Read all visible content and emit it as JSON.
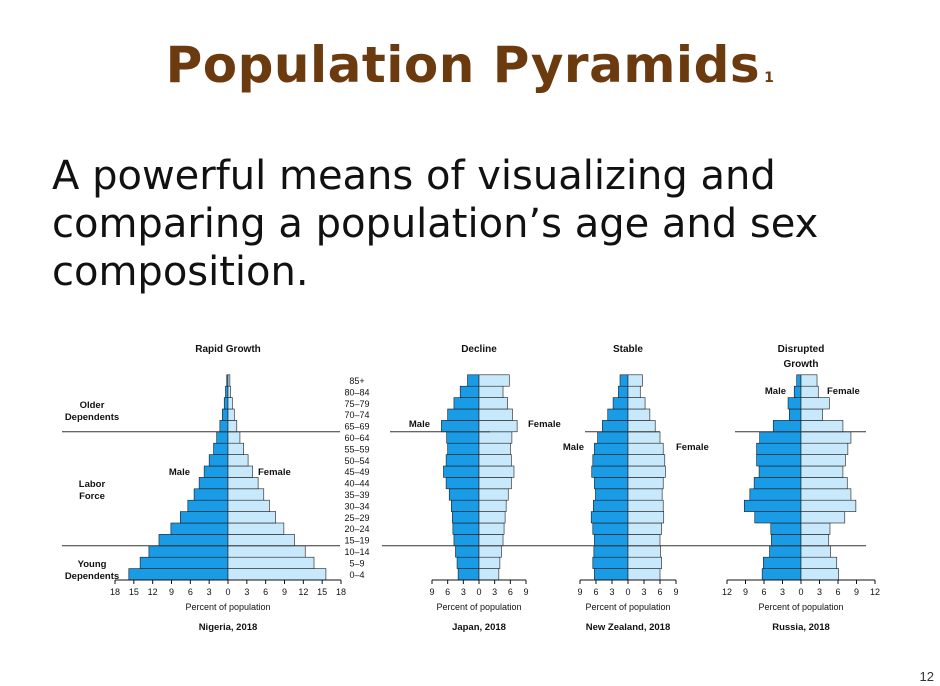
{
  "slide": {
    "title": "Population Pyramids",
    "title_superscript": "1",
    "body": "A powerful means of visualizing and comparing a population’s age and sex composition.",
    "page_number": "12"
  },
  "colors": {
    "male": "#1a9be6",
    "female": "#c8e8fb",
    "outline": "#1a1a1a",
    "title": "#6b3a0e"
  },
  "age_groups": [
    "0–4",
    "5–9",
    "10–14",
    "15–19",
    "20–24",
    "25–29",
    "30–34",
    "35–39",
    "40–44",
    "45–49",
    "50–54",
    "55–59",
    "60–64",
    "65–69",
    "70–74",
    "75–79",
    "80–84",
    "85+"
  ],
  "dependency_labels": {
    "older": "Older Dependents",
    "labor": "Labor Force",
    "young": "Young Dependents"
  },
  "chart_data": [
    {
      "type": "bar",
      "title": "Rapid Growth",
      "caption": "Nigeria, 2018",
      "xlabel": "Percent of population",
      "xticks": [
        18,
        15,
        12,
        9,
        6,
        3,
        0,
        3,
        6,
        9,
        12,
        15,
        18
      ],
      "xlim": [
        -18,
        18
      ],
      "legend": {
        "male": "Male",
        "female": "Female"
      },
      "series": [
        {
          "name": "Male",
          "values": [
            15.8,
            14.0,
            12.6,
            11.0,
            9.1,
            7.6,
            6.4,
            5.4,
            4.6,
            3.8,
            3.0,
            2.3,
            1.8,
            1.3,
            0.9,
            0.6,
            0.4,
            0.2
          ]
        },
        {
          "name": "Female",
          "values": [
            15.6,
            13.7,
            12.3,
            10.6,
            8.9,
            7.6,
            6.6,
            5.7,
            4.8,
            3.9,
            3.2,
            2.5,
            1.9,
            1.4,
            1.0,
            0.7,
            0.4,
            0.3
          ]
        }
      ]
    },
    {
      "type": "bar",
      "title": "Decline",
      "caption": "Japan, 2018",
      "xlabel": "Percent of population",
      "xticks": [
        9,
        6,
        3,
        0,
        3,
        6,
        9
      ],
      "xlim": [
        -9,
        9
      ],
      "legend": {
        "male": "Male",
        "female": "Female"
      },
      "series": [
        {
          "name": "Male",
          "values": [
            4.0,
            4.2,
            4.5,
            4.8,
            5.0,
            5.1,
            5.3,
            5.7,
            6.3,
            6.8,
            6.3,
            6.0,
            6.2,
            7.2,
            6.0,
            4.8,
            3.6,
            2.2
          ]
        },
        {
          "name": "Female",
          "values": [
            3.8,
            4.0,
            4.3,
            4.6,
            4.8,
            5.0,
            5.2,
            5.6,
            6.2,
            6.7,
            6.2,
            6.0,
            6.3,
            7.3,
            6.4,
            5.5,
            4.6,
            5.8
          ]
        }
      ]
    },
    {
      "type": "bar",
      "title": "Stable",
      "caption": "New Zealand, 2018",
      "xlabel": "Percent of population",
      "xticks": [
        9,
        6,
        3,
        0,
        3,
        6,
        9
      ],
      "xlim": [
        -9,
        9
      ],
      "legend": {
        "male": "Male",
        "female": "Female"
      },
      "series": [
        {
          "name": "Male",
          "values": [
            6.3,
            6.6,
            6.4,
            6.3,
            6.6,
            6.9,
            6.5,
            6.1,
            6.3,
            6.8,
            6.6,
            6.3,
            5.7,
            4.8,
            3.8,
            2.8,
            1.8,
            1.5
          ]
        },
        {
          "name": "Female",
          "values": [
            6.0,
            6.3,
            6.1,
            6.0,
            6.3,
            6.7,
            6.6,
            6.4,
            6.6,
            7.0,
            6.9,
            6.6,
            6.0,
            5.1,
            4.1,
            3.2,
            2.3,
            2.7
          ]
        }
      ]
    },
    {
      "type": "bar",
      "title": "Disrupted Growth",
      "caption": "Russia, 2018",
      "xlabel": "Percent of population",
      "xticks": [
        12,
        9,
        6,
        3,
        0,
        3,
        6,
        9,
        12
      ],
      "xlim": [
        -12,
        12
      ],
      "legend": {
        "male": "Male",
        "female": "Female"
      },
      "series": [
        {
          "name": "Male",
          "values": [
            6.3,
            6.1,
            5.1,
            4.8,
            4.9,
            7.5,
            9.2,
            8.3,
            7.6,
            6.8,
            7.2,
            7.2,
            6.7,
            4.5,
            1.9,
            2.1,
            1.1,
            0.7
          ]
        },
        {
          "name": "Female",
          "values": [
            6.1,
            5.8,
            4.8,
            4.5,
            4.7,
            7.1,
            8.9,
            8.1,
            7.5,
            6.8,
            7.2,
            7.6,
            8.1,
            6.8,
            3.5,
            4.6,
            2.8,
            2.6
          ]
        }
      ]
    }
  ]
}
